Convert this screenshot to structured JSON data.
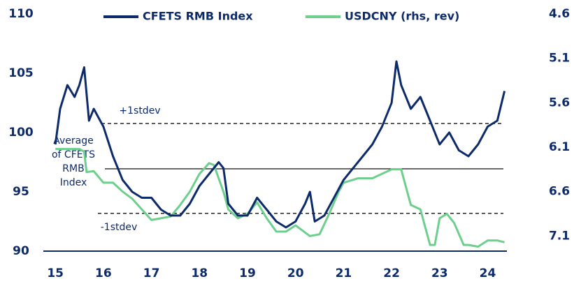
{
  "chart_data": {
    "type": "line",
    "legend": "top",
    "xlim": [
      14.75,
      24.4
    ],
    "xticks": [
      15,
      16,
      17,
      18,
      19,
      20,
      21,
      22,
      23,
      24
    ],
    "ylim": [
      90,
      110
    ],
    "yticks": [
      90,
      95,
      100,
      105,
      110
    ],
    "y2lim": [
      7.27,
      4.6
    ],
    "y2ticks": [
      4.6,
      5.1,
      5.6,
      6.1,
      6.6,
      7.1
    ],
    "reference_lines": [
      {
        "label": "+1stdev",
        "value": 100.76,
        "style": "dashed"
      },
      {
        "label": [
          "Average",
          "of CFETS",
          "RMB",
          "Index"
        ],
        "value": 96.94,
        "style": "solid"
      },
      {
        "label": "-1stdev",
        "value": 93.18,
        "style": "dashed"
      }
    ],
    "series": [
      {
        "name": "CFETS RMB Index",
        "color": "#0d2b6b",
        "x": [
          15.0,
          15.1,
          15.25,
          15.4,
          15.5,
          15.6,
          15.7,
          15.8,
          16.0,
          16.2,
          16.4,
          16.6,
          16.8,
          17.0,
          17.2,
          17.4,
          17.6,
          17.8,
          18.0,
          18.2,
          18.4,
          18.5,
          18.6,
          18.8,
          19.0,
          19.2,
          19.4,
          19.6,
          19.8,
          20.0,
          20.2,
          20.3,
          20.4,
          20.6,
          20.8,
          21.0,
          21.2,
          21.4,
          21.6,
          21.8,
          22.0,
          22.1,
          22.2,
          22.4,
          22.6,
          22.8,
          23.0,
          23.2,
          23.4,
          23.6,
          23.8,
          24.0,
          24.2,
          24.35
        ],
        "values": [
          99,
          102,
          104,
          103,
          104,
          105.5,
          101,
          102,
          100.5,
          98,
          96,
          95,
          94.5,
          94.5,
          93.5,
          93,
          93,
          94,
          95.5,
          96.5,
          97.5,
          97,
          94,
          93,
          93,
          94.5,
          93.5,
          92.5,
          92,
          92.5,
          94,
          95,
          92.5,
          93,
          94.5,
          96,
          97,
          98,
          99,
          100.5,
          102.5,
          106,
          104,
          102,
          103,
          101,
          99,
          100,
          98.5,
          98,
          99,
          100.5,
          101,
          103.5
        ]
      },
      {
        "name": "USDCNY (rhs, rev)",
        "color": "#6dcf8c",
        "axis": "y2",
        "x": [
          15.0,
          15.5,
          15.6,
          15.65,
          15.8,
          16.0,
          16.2,
          16.4,
          16.6,
          16.8,
          17.0,
          17.2,
          17.4,
          17.6,
          17.8,
          18.0,
          18.2,
          18.3,
          18.5,
          18.6,
          18.8,
          19.0,
          19.2,
          19.4,
          19.6,
          19.8,
          20.0,
          20.3,
          20.5,
          20.7,
          20.9,
          21.0,
          21.3,
          21.6,
          21.8,
          22.0,
          22.2,
          22.3,
          22.4,
          22.6,
          22.8,
          22.9,
          23.0,
          23.15,
          23.3,
          23.5,
          23.6,
          23.8,
          24.0,
          24.2,
          24.35
        ],
        "values": [
          6.12,
          6.12,
          6.15,
          6.38,
          6.37,
          6.5,
          6.5,
          6.6,
          6.68,
          6.8,
          6.92,
          6.9,
          6.88,
          6.75,
          6.6,
          6.4,
          6.28,
          6.3,
          6.6,
          6.8,
          6.9,
          6.85,
          6.72,
          6.9,
          7.05,
          7.05,
          6.98,
          7.1,
          7.08,
          6.85,
          6.6,
          6.5,
          6.45,
          6.45,
          6.4,
          6.35,
          6.35,
          6.55,
          6.75,
          6.8,
          7.2,
          7.2,
          6.9,
          6.85,
          6.95,
          7.2,
          7.2,
          7.22,
          7.15,
          7.15,
          7.17
        ]
      }
    ]
  }
}
